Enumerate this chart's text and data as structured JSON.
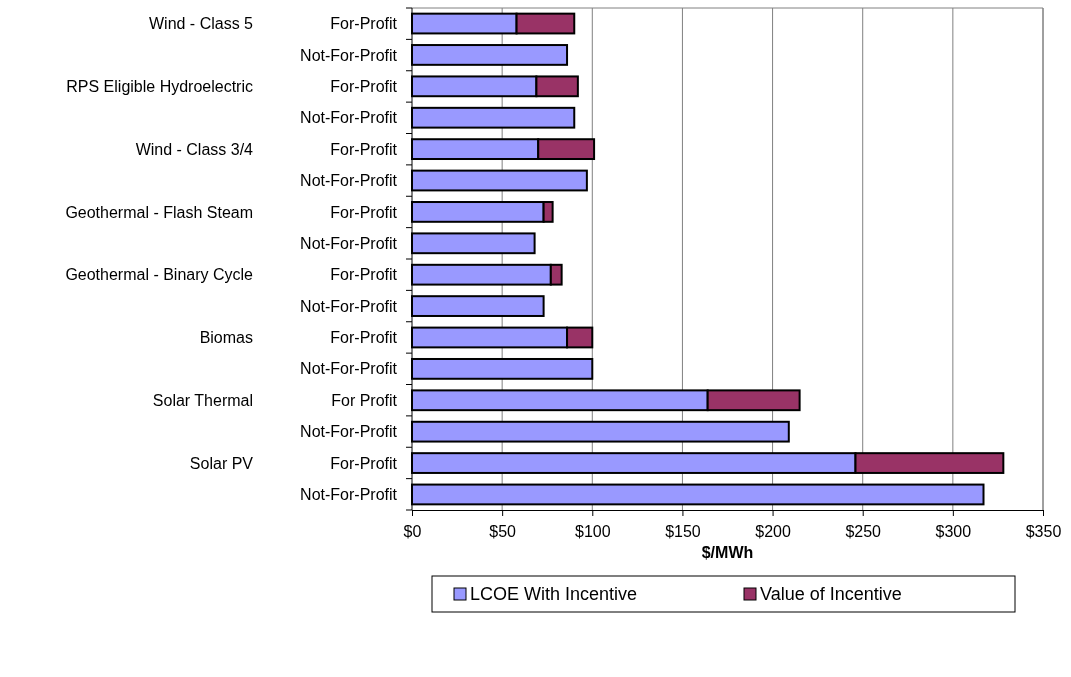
{
  "chart_data": {
    "type": "bar",
    "orientation": "horizontal",
    "stacked": true,
    "categories": [
      "For-Profit",
      "Not-For-Profit",
      "For-Profit",
      "Not-For-Profit",
      "For-Profit",
      "Not-For-Profit",
      "For-Profit",
      "Not-For-Profit",
      "For-Profit",
      "Not-For-Profit",
      "For-Profit",
      "Not-For-Profit",
      "For Profit",
      "Not-For-Profit",
      "For-Profit",
      "Not-For-Profit"
    ],
    "annotations": [
      "Wind - Class 5",
      "RPS Eligible Hydroelectric",
      "Wind - Class 3/4",
      "Geothermal - Flash Steam",
      "Geothermal - Binary Cycle",
      "Biomas",
      "Solar Thermal",
      "Solar PV"
    ],
    "series": [
      {
        "name": "LCOE With Incentive",
        "color": "#9999ff",
        "values": [
          58,
          86,
          69,
          90,
          70,
          97,
          73,
          68,
          77,
          73,
          86,
          100,
          164,
          209,
          246,
          317
        ]
      },
      {
        "name": "Value of Incentive",
        "color": "#993366",
        "values": [
          32,
          null,
          23,
          null,
          31,
          null,
          5,
          null,
          6,
          null,
          14,
          null,
          51,
          null,
          82,
          null
        ]
      }
    ],
    "xlabel": "$/MWh",
    "xlim": [
      0,
      350
    ],
    "xticks": [
      {
        "value": 0,
        "label": "$0"
      },
      {
        "value": 50,
        "label": "$50"
      },
      {
        "value": 100,
        "label": "$100"
      },
      {
        "value": 150,
        "label": "$150"
      },
      {
        "value": 200,
        "label": "$200"
      },
      {
        "value": 250,
        "label": "$250"
      },
      {
        "value": 300,
        "label": "$300"
      },
      {
        "value": 350,
        "label": "$350"
      }
    ],
    "grid": "x",
    "legend": "bottom"
  }
}
